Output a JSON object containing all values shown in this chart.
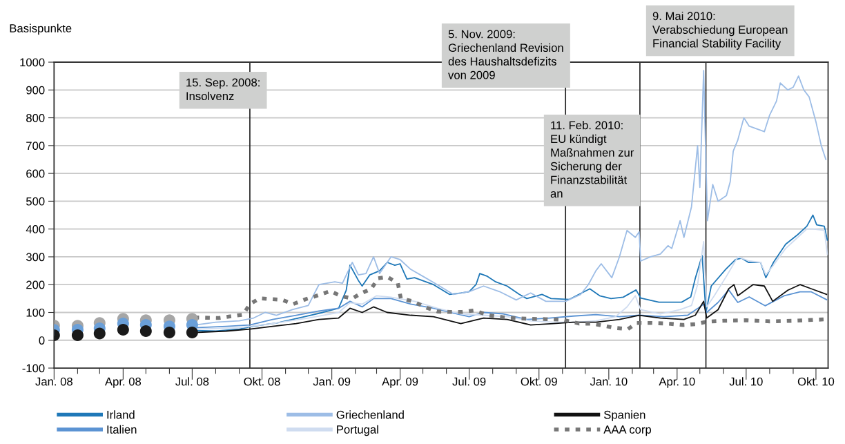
{
  "chart_data": {
    "type": "line",
    "ylabel": "Basispunkte",
    "xlim": [
      "2008-01-01",
      "2010-10-17"
    ],
    "xticks": [
      {
        "value": "2008-01-01",
        "label": "Jan. 08"
      },
      {
        "value": "2008-02-01",
        "label": null
      },
      {
        "value": "2008-03-01",
        "label": null
      },
      {
        "value": "2008-04-01",
        "label": "Apr. 08"
      },
      {
        "value": "2008-05-01",
        "label": null
      },
      {
        "value": "2008-06-01",
        "label": null
      },
      {
        "value": "2008-07-01",
        "label": "Jul. 08"
      },
      {
        "value": "2008-08-01",
        "label": null
      },
      {
        "value": "2008-09-01",
        "label": null
      },
      {
        "value": "2008-10-01",
        "label": "Okt. 08"
      },
      {
        "value": "2008-11-01",
        "label": null
      },
      {
        "value": "2008-12-01",
        "label": null
      },
      {
        "value": "2009-01-01",
        "label": "Jan. 09"
      },
      {
        "value": "2009-02-01",
        "label": null
      },
      {
        "value": "2009-03-01",
        "label": null
      },
      {
        "value": "2009-04-01",
        "label": "Apr. 09"
      },
      {
        "value": "2009-05-01",
        "label": null
      },
      {
        "value": "2009-06-01",
        "label": null
      },
      {
        "value": "2009-07-01",
        "label": "Jul. 09"
      },
      {
        "value": "2009-08-01",
        "label": null
      },
      {
        "value": "2009-09-01",
        "label": null
      },
      {
        "value": "2009-10-01",
        "label": "Okt. 09"
      },
      {
        "value": "2009-11-01",
        "label": null
      },
      {
        "value": "2009-12-01",
        "label": null
      },
      {
        "value": "2010-01-01",
        "label": "Jan. 10"
      },
      {
        "value": "2010-02-01",
        "label": null
      },
      {
        "value": "2010-03-01",
        "label": null
      },
      {
        "value": "2010-04-01",
        "label": "Apr. 10"
      },
      {
        "value": "2010-05-01",
        "label": null
      },
      {
        "value": "2010-06-01",
        "label": null
      },
      {
        "value": "2010-07-01",
        "label": "Jul. 10"
      },
      {
        "value": "2010-08-01",
        "label": null
      },
      {
        "value": "2010-09-01",
        "label": null
      },
      {
        "value": "2010-10-01",
        "label": "Okt. 10"
      }
    ],
    "ylim": [
      -100,
      1000
    ],
    "yticks": [
      -100,
      0,
      100,
      200,
      300,
      400,
      500,
      600,
      700,
      800,
      900,
      1000
    ],
    "grid": "y",
    "legend": "bottom",
    "marker": "none",
    "line_style": "solid",
    "series": [
      {
        "name": "Irland",
        "color": "#1f78b8",
        "x": [
          "2008-07-05",
          "2008-08-01",
          "2008-09-01",
          "2008-09-15",
          "2008-10-01",
          "2008-10-20",
          "2008-11-10",
          "2008-12-01",
          "2008-12-20",
          "2009-01-10",
          "2009-01-20",
          "2009-01-25",
          "2009-02-05",
          "2009-02-10",
          "2009-02-20",
          "2009-03-05",
          "2009-03-15",
          "2009-03-25",
          "2009-04-01",
          "2009-04-10",
          "2009-04-20",
          "2009-05-15",
          "2009-06-05",
          "2009-06-20",
          "2009-07-01",
          "2009-07-10",
          "2009-07-15",
          "2009-07-25",
          "2009-08-05",
          "2009-08-20",
          "2009-09-05",
          "2009-09-15",
          "2009-10-05",
          "2009-10-17",
          "2009-11-10",
          "2009-12-07",
          "2009-12-20",
          "2010-01-04",
          "2010-01-20",
          "2010-02-06",
          "2010-02-12",
          "2010-03-08",
          "2010-04-07",
          "2010-04-19",
          "2010-04-25",
          "2010-05-04",
          "2010-05-09",
          "2010-05-16",
          "2010-06-04",
          "2010-06-17",
          "2010-06-25",
          "2010-07-04",
          "2010-07-20",
          "2010-07-27",
          "2010-08-06",
          "2010-08-22",
          "2010-09-07",
          "2010-09-19",
          "2010-09-27",
          "2010-10-02",
          "2010-10-12",
          "2010-10-16"
        ],
        "values": [
          35,
          33,
          40,
          48,
          55,
          62,
          75,
          88,
          100,
          115,
          180,
          270,
          215,
          195,
          235,
          250,
          280,
          270,
          275,
          220,
          225,
          200,
          165,
          170,
          175,
          200,
          240,
          230,
          210,
          195,
          165,
          150,
          165,
          150,
          147,
          185,
          160,
          150,
          155,
          181,
          152,
          137,
          137,
          156,
          223,
          305,
          100,
          195,
          255,
          290,
          295,
          280,
          280,
          225,
          280,
          345,
          380,
          410,
          450,
          415,
          410,
          360
        ]
      },
      {
        "name": "Italien",
        "color": "#5b93d3",
        "x": [
          "2008-07-05",
          "2008-08-15",
          "2008-09-15",
          "2008-10-15",
          "2008-11-15",
          "2008-12-15",
          "2009-01-10",
          "2009-01-25",
          "2009-02-10",
          "2009-02-25",
          "2009-03-20",
          "2009-04-15",
          "2009-05-15",
          "2009-06-15",
          "2009-07-01",
          "2009-07-20",
          "2009-08-15",
          "2009-09-15",
          "2009-10-15",
          "2009-11-15",
          "2009-12-15",
          "2010-01-15",
          "2010-02-10",
          "2010-03-15",
          "2010-04-15",
          "2010-04-28",
          "2010-05-06",
          "2010-05-10",
          "2010-05-25",
          "2010-06-08",
          "2010-06-20",
          "2010-07-05",
          "2010-07-26",
          "2010-08-20",
          "2010-09-10",
          "2010-09-25",
          "2010-10-15"
        ],
        "values": [
          45,
          50,
          55,
          75,
          90,
          105,
          115,
          140,
          120,
          150,
          150,
          130,
          115,
          95,
          85,
          100,
          95,
          75,
          80,
          87,
          92,
          85,
          90,
          85,
          90,
          114,
          130,
          100,
          136,
          181,
          136,
          156,
          124,
          160,
          174,
          174,
          146
        ]
      },
      {
        "name": "Griechenland",
        "color": "#9dbde6",
        "x": [
          "2008-07-05",
          "2008-08-01",
          "2008-09-01",
          "2008-09-20",
          "2008-10-05",
          "2008-10-20",
          "2008-11-10",
          "2008-12-01",
          "2008-12-15",
          "2009-01-05",
          "2009-01-15",
          "2009-01-28",
          "2009-02-05",
          "2009-02-15",
          "2009-02-25",
          "2009-03-05",
          "2009-03-20",
          "2009-04-01",
          "2009-04-15",
          "2009-05-01",
          "2009-05-20",
          "2009-06-10",
          "2009-07-01",
          "2009-07-20",
          "2009-08-10",
          "2009-09-01",
          "2009-09-20",
          "2009-10-10",
          "2009-11-05",
          "2009-11-25",
          "2009-12-05",
          "2009-12-15",
          "2009-12-22",
          "2010-01-05",
          "2010-01-15",
          "2010-01-25",
          "2010-02-05",
          "2010-02-10",
          "2010-02-12",
          "2010-02-25",
          "2010-03-10",
          "2010-03-20",
          "2010-03-25",
          "2010-04-05",
          "2010-04-10",
          "2010-04-20",
          "2010-04-28",
          "2010-05-01",
          "2010-05-06",
          "2010-05-11",
          "2010-05-18",
          "2010-05-25",
          "2010-06-05",
          "2010-06-10",
          "2010-06-14",
          "2010-06-20",
          "2010-06-28",
          "2010-07-05",
          "2010-07-15",
          "2010-07-25",
          "2010-08-01",
          "2010-08-10",
          "2010-08-15",
          "2010-08-25",
          "2010-09-01",
          "2010-09-08",
          "2010-09-15",
          "2010-09-22",
          "2010-10-01",
          "2010-10-08",
          "2010-10-14"
        ],
        "values": [
          55,
          65,
          70,
          80,
          100,
          90,
          110,
          125,
          200,
          210,
          205,
          280,
          235,
          240,
          300,
          240,
          300,
          290,
          255,
          230,
          200,
          165,
          175,
          195,
          175,
          145,
          170,
          140,
          140,
          165,
          200,
          250,
          275,
          225,
          300,
          395,
          370,
          390,
          285,
          300,
          310,
          340,
          330,
          430,
          370,
          480,
          700,
          550,
          970,
          430,
          560,
          500,
          520,
          570,
          680,
          720,
          800,
          770,
          760,
          750,
          810,
          860,
          925,
          900,
          910,
          950,
          900,
          875,
          785,
          700,
          650
        ]
      },
      {
        "name": "Portugal",
        "color": "#cfdcf0",
        "x": [
          "2008-07-05",
          "2008-09-01",
          "2008-10-15",
          "2008-12-01",
          "2009-01-10",
          "2009-01-25",
          "2009-02-10",
          "2009-03-01",
          "2009-03-20",
          "2009-04-20",
          "2009-05-20",
          "2009-06-20",
          "2009-07-20",
          "2009-08-20",
          "2009-09-20",
          "2009-10-20",
          "2009-11-20",
          "2009-12-15",
          "2010-01-10",
          "2010-01-25",
          "2010-02-05",
          "2010-02-12",
          "2010-03-10",
          "2010-04-05",
          "2010-04-20",
          "2010-04-28",
          "2010-05-06",
          "2010-05-10",
          "2010-05-20",
          "2010-06-05",
          "2010-06-20",
          "2010-07-05",
          "2010-07-20",
          "2010-07-27",
          "2010-08-06",
          "2010-08-22",
          "2010-09-07",
          "2010-09-19",
          "2010-09-27",
          "2010-10-12",
          "2010-10-16"
        ],
        "values": [
          40,
          45,
          60,
          80,
          100,
          135,
          130,
          160,
          155,
          140,
          115,
          95,
          90,
          85,
          70,
          65,
          65,
          70,
          85,
          120,
          160,
          110,
          95,
          110,
          125,
          200,
          355,
          120,
          160,
          230,
          300,
          285,
          280,
          235,
          270,
          330,
          370,
          400,
          400,
          395,
          310
        ]
      },
      {
        "name": "Spanien",
        "color": "#111111",
        "x": [
          "2008-07-05",
          "2008-08-15",
          "2008-09-15",
          "2008-10-15",
          "2008-11-15",
          "2008-12-15",
          "2009-01-10",
          "2009-01-25",
          "2009-02-10",
          "2009-02-25",
          "2009-03-15",
          "2009-04-15",
          "2009-05-15",
          "2009-06-20",
          "2009-07-20",
          "2009-08-20",
          "2009-09-20",
          "2009-10-20",
          "2009-11-15",
          "2009-12-15",
          "2010-01-15",
          "2010-02-10",
          "2010-03-10",
          "2010-04-10",
          "2010-04-25",
          "2010-05-06",
          "2010-05-10",
          "2010-05-25",
          "2010-06-08",
          "2010-06-15",
          "2010-06-20",
          "2010-07-10",
          "2010-07-25",
          "2010-08-05",
          "2010-08-25",
          "2010-09-10",
          "2010-09-25",
          "2010-10-15"
        ],
        "values": [
          28,
          33,
          40,
          50,
          60,
          75,
          80,
          115,
          100,
          120,
          100,
          90,
          85,
          60,
          80,
          75,
          55,
          60,
          65,
          65,
          75,
          90,
          80,
          75,
          90,
          140,
          80,
          110,
          185,
          200,
          160,
          200,
          195,
          140,
          180,
          200,
          185,
          165
        ]
      },
      {
        "name": "AAA corp",
        "color": "#777777",
        "line_style": "dashed",
        "x": [
          "2008-07-04",
          "2008-08-05",
          "2008-09-06",
          "2008-09-15",
          "2008-09-28",
          "2008-10-28",
          "2008-11-11",
          "2008-11-28",
          "2008-12-10",
          "2008-12-30",
          "2009-01-13",
          "2009-01-28",
          "2009-02-08",
          "2009-02-22",
          "2009-03-03",
          "2009-03-15",
          "2009-03-29",
          "2009-04-02",
          "2009-04-18",
          "2009-05-06",
          "2009-05-21",
          "2009-06-05",
          "2009-06-22",
          "2009-07-07",
          "2009-07-27",
          "2009-08-14",
          "2009-09-03",
          "2009-09-20",
          "2009-10-10",
          "2009-11-01",
          "2009-11-23",
          "2009-12-10",
          "2010-01-08",
          "2010-01-26",
          "2010-02-07",
          "2010-02-27",
          "2010-03-20",
          "2010-04-09",
          "2010-04-25",
          "2010-05-11",
          "2010-06-01",
          "2010-07-01",
          "2010-08-01",
          "2010-09-01",
          "2010-10-11"
        ],
        "values": [
          82,
          80,
          92,
          130,
          151,
          145,
          130,
          148,
          158,
          177,
          159,
          150,
          168,
          185,
          223,
          228,
          205,
          150,
          140,
          117,
          103,
          102,
          102,
          107,
          90,
          83,
          79,
          77,
          76,
          74,
          60,
          60,
          45,
          40,
          62,
          62,
          60,
          55,
          58,
          67,
          70,
          72,
          68,
          70,
          75
        ]
      },
      {
        "type": "scatter",
        "marker": "circle",
        "color": "#a6a6a6",
        "x": [
          "2008-01-01",
          "2008-02-01",
          "2008-03-01",
          "2008-04-01",
          "2008-05-01",
          "2008-06-01",
          "2008-07-01"
        ],
        "values": [
          53,
          52,
          62,
          77,
          72,
          72,
          77
        ]
      },
      {
        "type": "scatter",
        "marker": "circle",
        "color": "#6a9fd8",
        "x": [
          "2008-01-01",
          "2008-02-01",
          "2008-03-01",
          "2008-04-01",
          "2008-05-01",
          "2008-06-01",
          "2008-07-01"
        ],
        "values": [
          37,
          38,
          43,
          60,
          55,
          50,
          55
        ]
      },
      {
        "type": "scatter",
        "marker": "circle",
        "color": "#1a1a1a",
        "x": [
          "2008-01-01",
          "2008-02-01",
          "2008-03-01",
          "2008-04-01",
          "2008-05-01",
          "2008-06-01",
          "2008-07-01"
        ],
        "values": [
          18,
          18,
          24,
          38,
          33,
          28,
          28
        ]
      }
    ],
    "ref_lines": [
      {
        "axis": "x",
        "value": "2008-09-15",
        "label": "15. Sep. 2008:\nInsolvenz",
        "color": "#222222"
      },
      {
        "axis": "x",
        "value": "2009-11-05",
        "label": "5. Nov. 2009:\nGriechenland Revision\ndes Haushaltsdefizits\nvon 2009",
        "color": "#222222"
      },
      {
        "axis": "x",
        "value": "2010-02-11",
        "label": "11. Feb. 2010:\nEU kündigt\nMaßnahmen zur\nSicherung der\nFinanzstabilität\nan",
        "color": "#222222"
      },
      {
        "axis": "x",
        "value": "2010-05-09",
        "label": "9. Mai 2010:\nVerabschiedung European\nFinancial Stability Facility",
        "color": "#222222"
      }
    ]
  }
}
